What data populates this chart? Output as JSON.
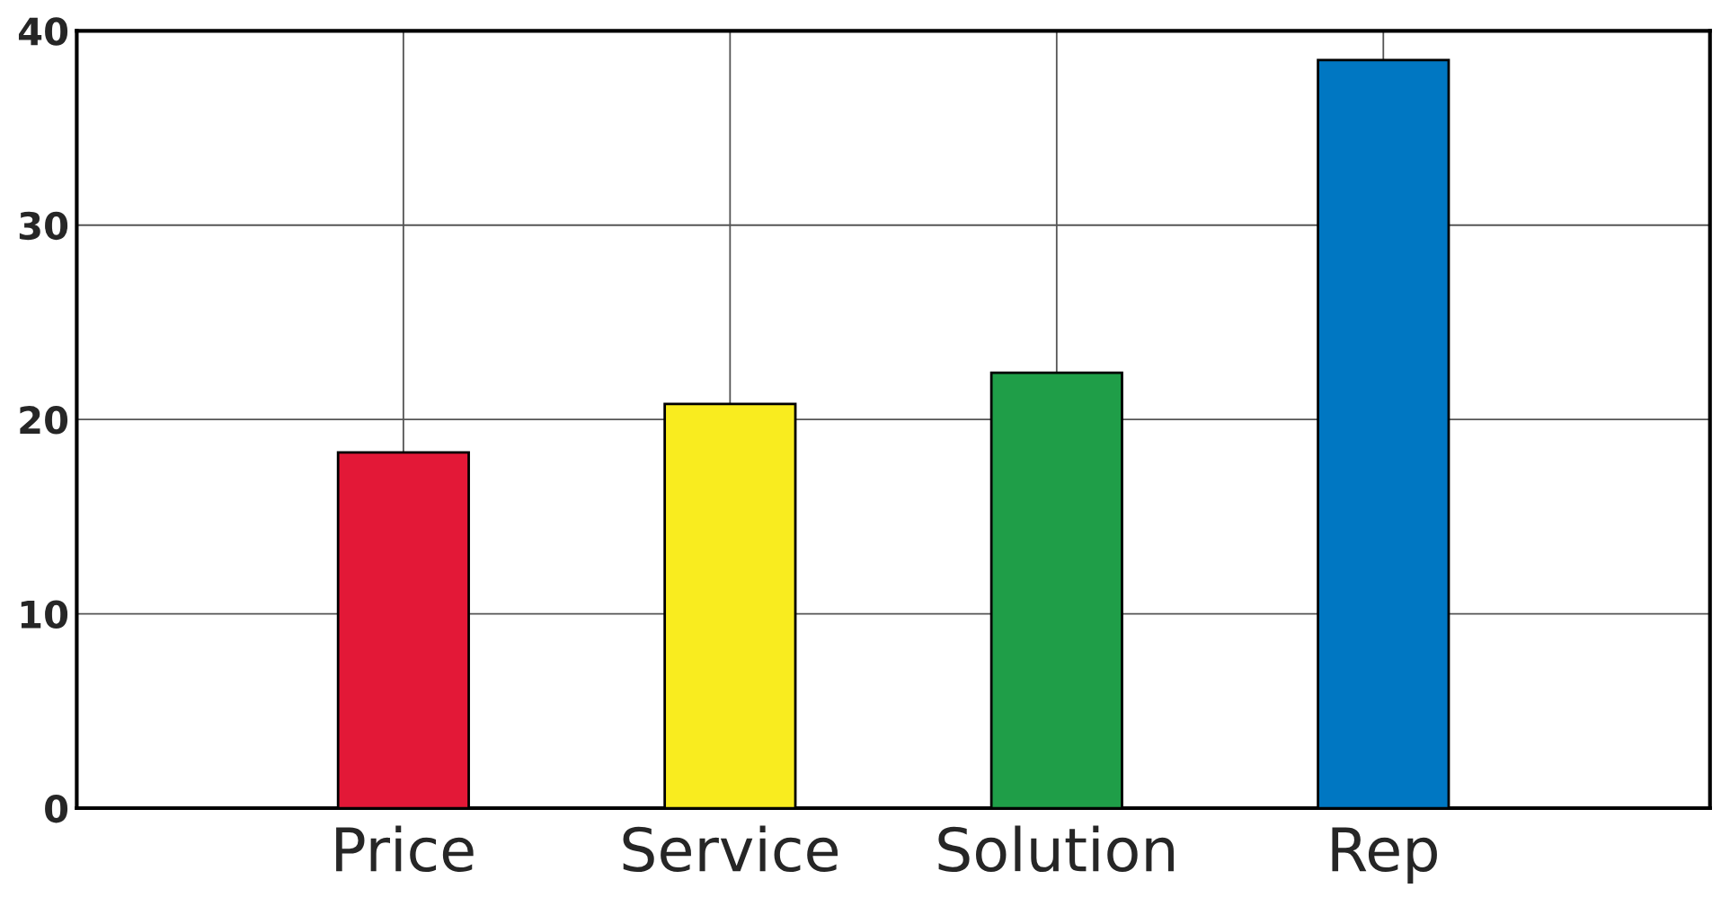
{
  "chart_data": {
    "type": "bar",
    "categories": [
      "Price",
      "Service",
      "Solution",
      "Rep"
    ],
    "values": [
      18.3,
      20.8,
      22.4,
      38.5
    ],
    "colors": [
      "#e31837",
      "#f9ec1f",
      "#1f9e48",
      "#0077c2"
    ],
    "ylim": [
      0,
      40
    ],
    "yticks": [
      0,
      10,
      20,
      30,
      40
    ],
    "grid": true
  }
}
